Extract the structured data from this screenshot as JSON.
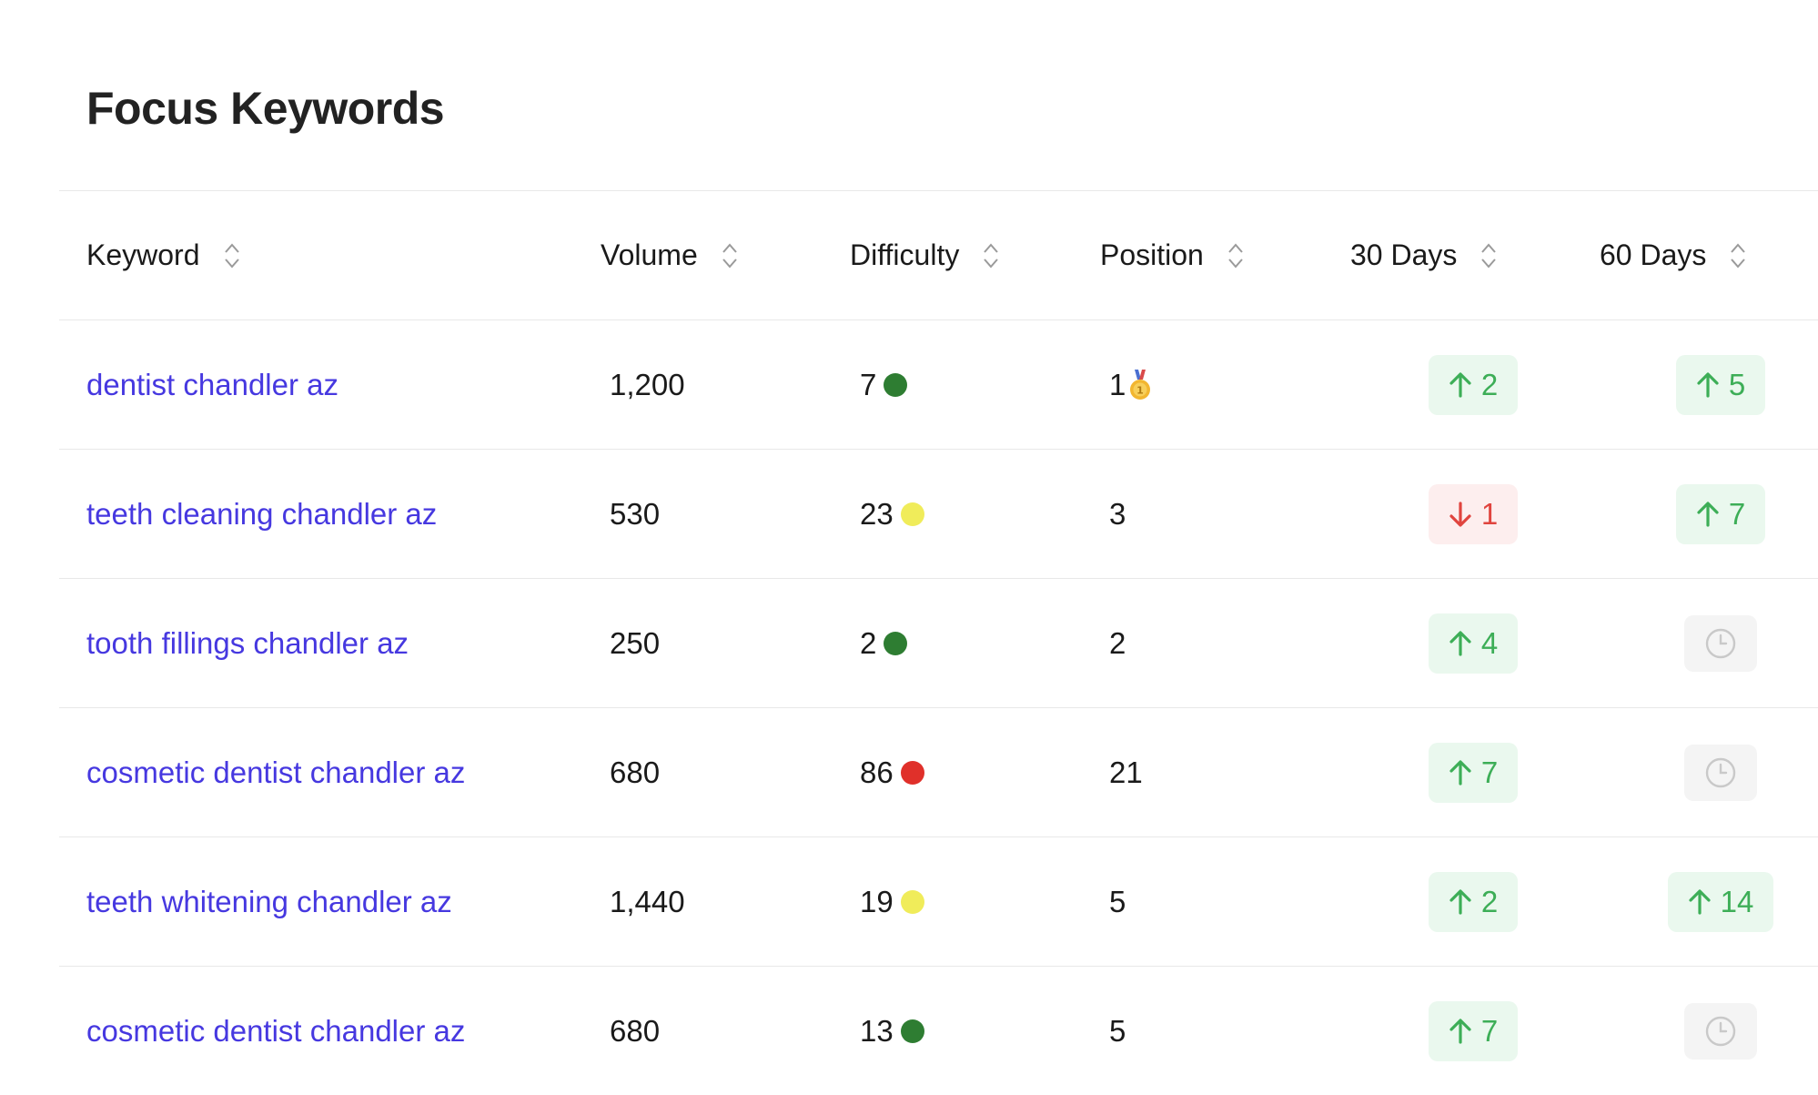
{
  "title": "Focus Keywords",
  "columns": {
    "keyword": "Keyword",
    "volume": "Volume",
    "difficulty": "Difficulty",
    "position": "Position",
    "d30": "30 Days",
    "d60": "60 Days"
  },
  "difficulty_colors": {
    "easy": "#2e7d32",
    "medium": "#f0ec5a",
    "hard": "#e0302a"
  },
  "trend_colors": {
    "up": "#3dae57",
    "down": "#e0443e"
  },
  "rows": [
    {
      "keyword": "dentist chandler az",
      "volume": "1,200",
      "difficulty": "7",
      "difficulty_level": "easy",
      "position": "1",
      "position_icon": "medal-icon",
      "d30": {
        "dir": "up",
        "value": "2"
      },
      "d60": {
        "dir": "up",
        "value": "5"
      }
    },
    {
      "keyword": "teeth cleaning chandler az",
      "volume": "530",
      "difficulty": "23",
      "difficulty_level": "medium",
      "position": "3",
      "d30": {
        "dir": "down",
        "value": "1"
      },
      "d60": {
        "dir": "up",
        "value": "7"
      }
    },
    {
      "keyword": "tooth fillings chandler az",
      "volume": "250",
      "difficulty": "2",
      "difficulty_level": "easy",
      "position": "2",
      "d30": {
        "dir": "up",
        "value": "4"
      },
      "d60": {
        "dir": "pending",
        "icon": "clock-icon"
      }
    },
    {
      "keyword": "cosmetic dentist chandler az",
      "volume": "680",
      "difficulty": "86",
      "difficulty_level": "hard",
      "position": "21",
      "d30": {
        "dir": "up",
        "value": "7"
      },
      "d60": {
        "dir": "pending",
        "icon": "clock-icon"
      }
    },
    {
      "keyword": "teeth whitening chandler az",
      "volume": "1,440",
      "difficulty": "19",
      "difficulty_level": "medium",
      "position": "5",
      "d30": {
        "dir": "up",
        "value": "2"
      },
      "d60": {
        "dir": "up",
        "value": "14"
      }
    },
    {
      "keyword": "cosmetic dentist chandler az",
      "volume": "680",
      "difficulty": "13",
      "difficulty_level": "easy",
      "position": "5",
      "d30": {
        "dir": "up",
        "value": "7"
      },
      "d60": {
        "dir": "pending",
        "icon": "clock-icon"
      }
    }
  ]
}
